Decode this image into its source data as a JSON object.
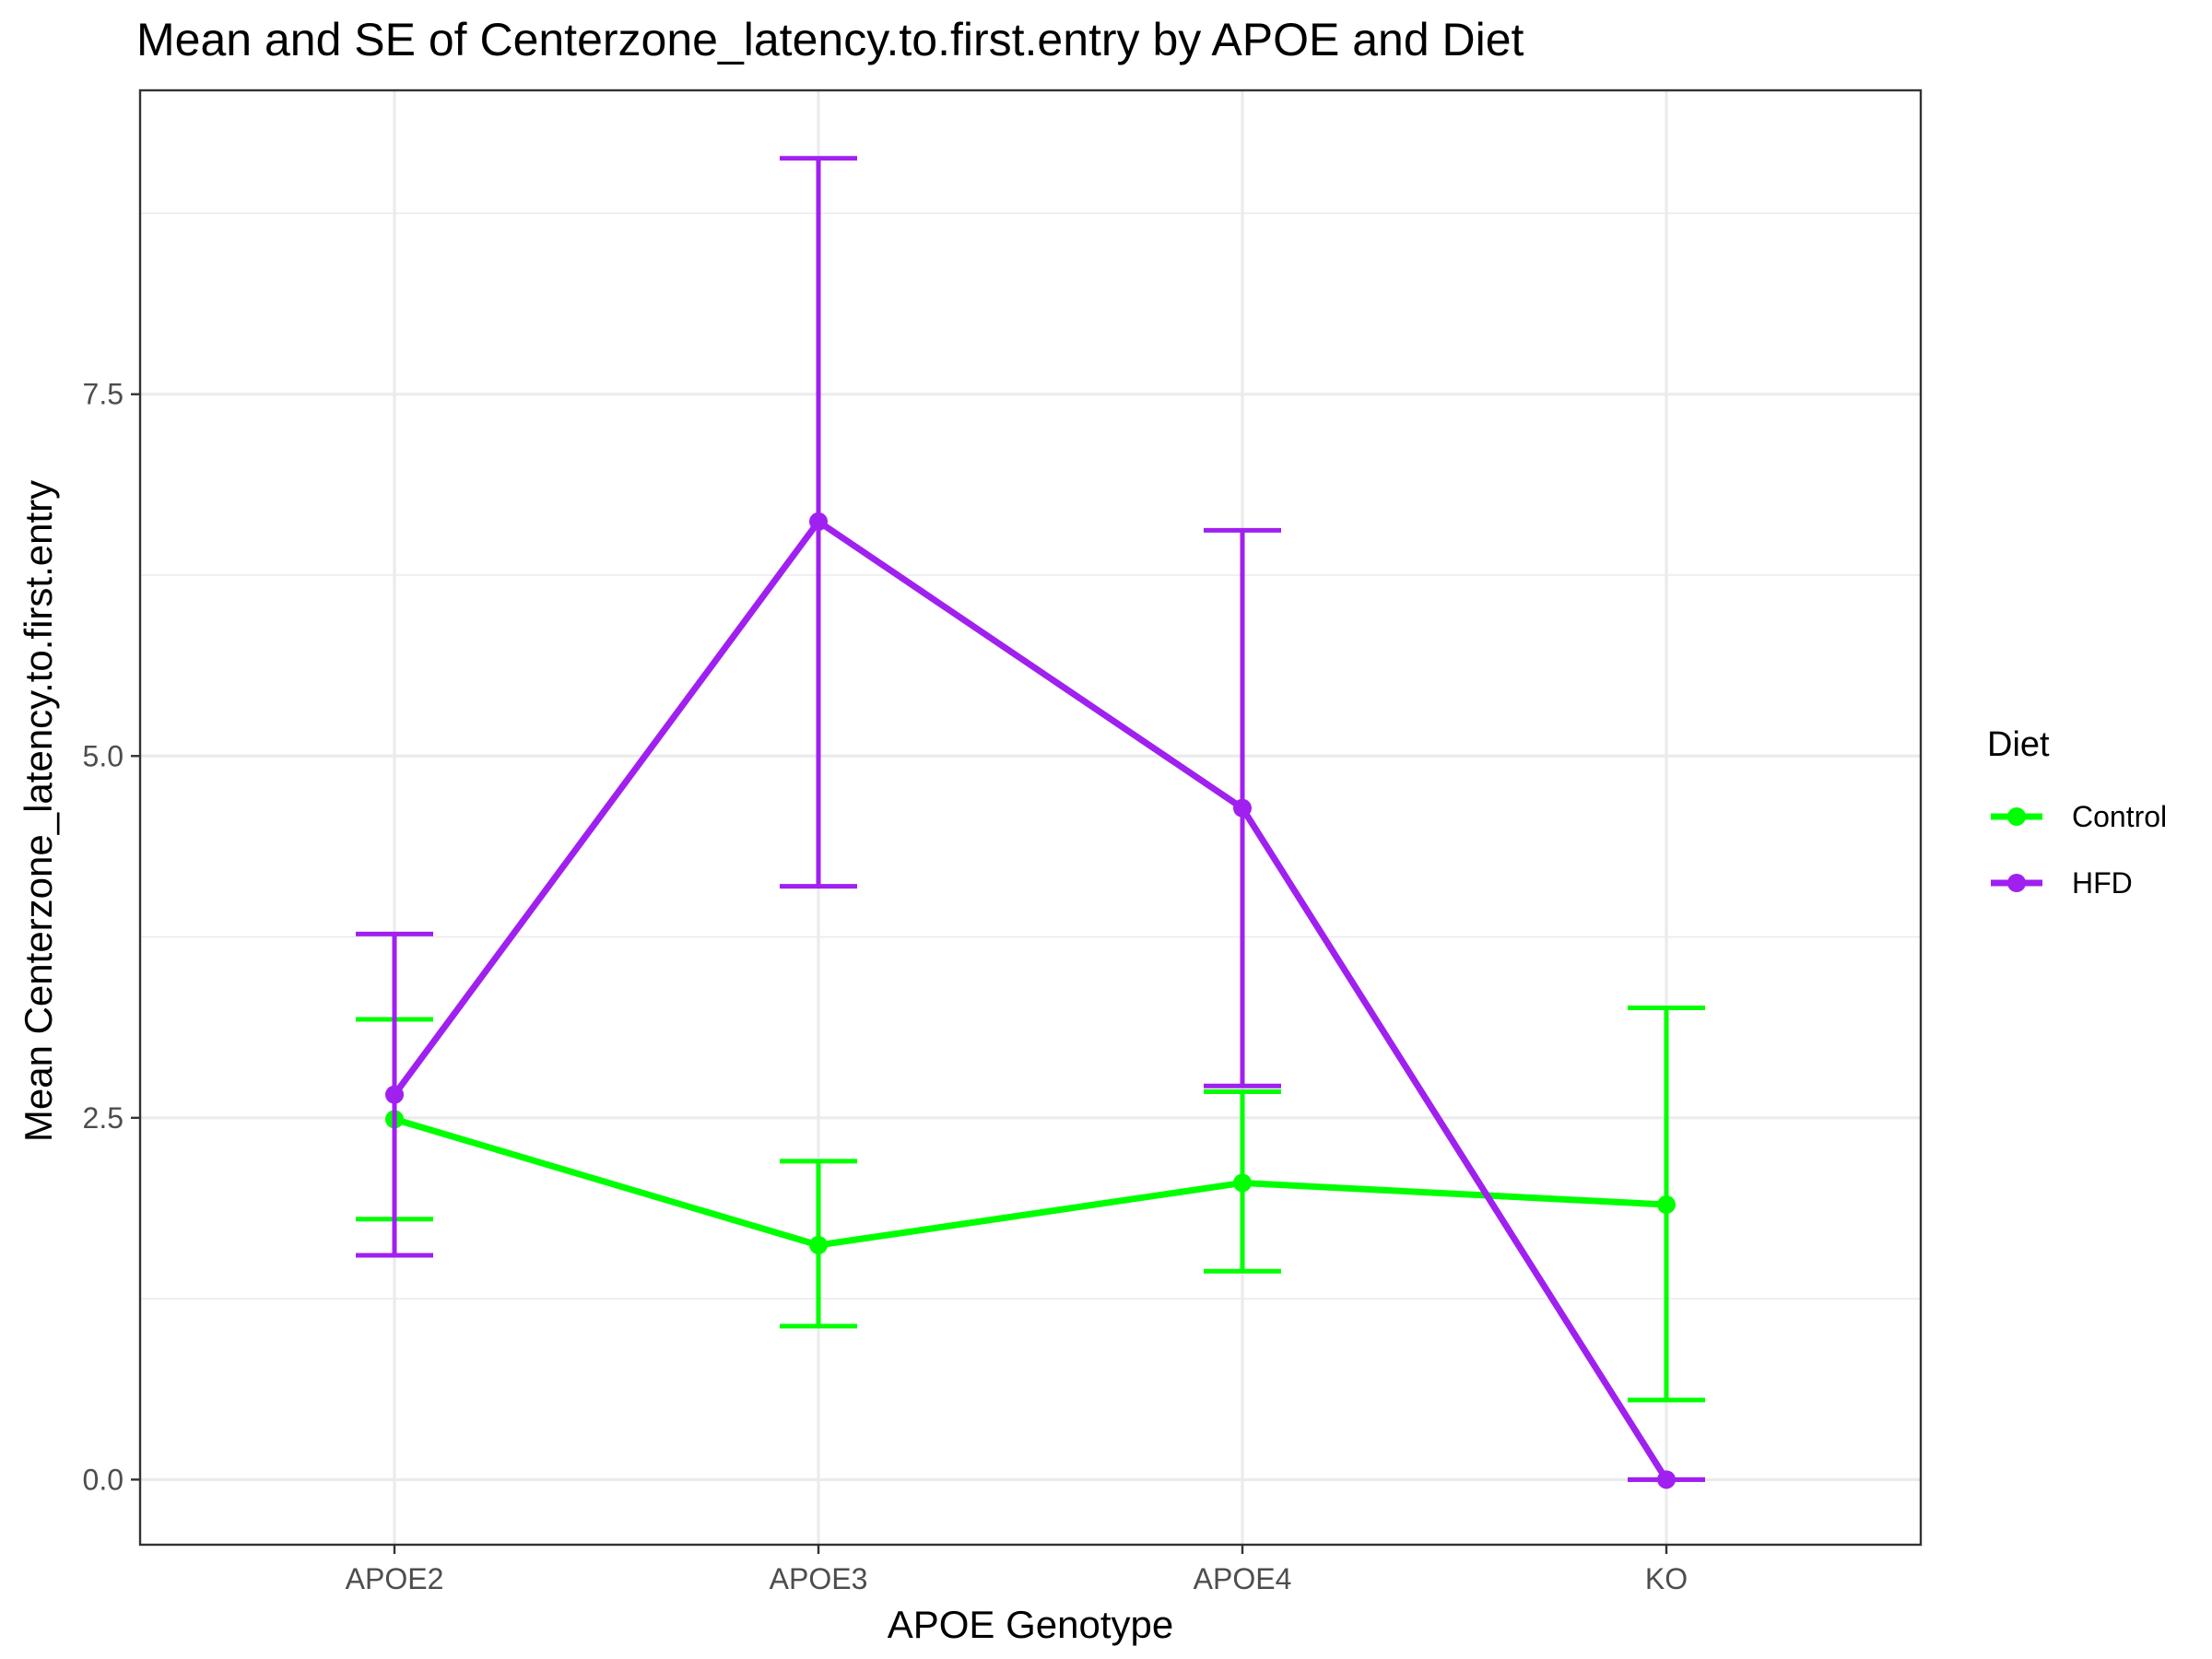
{
  "chart_data": {
    "type": "line",
    "title": "Mean and SE of Centerzone_latency.to.first.entry by APOE and Diet",
    "xlabel": "APOE Genotype",
    "ylabel": "Mean Centerzone_latency.to.first.entry",
    "categories": [
      "APOE2",
      "APOE3",
      "APOE4",
      "KO"
    ],
    "ylim": [
      -0.45,
      9.6
    ],
    "yticks": [
      0.0,
      2.5,
      5.0,
      7.5
    ],
    "ytick_labels": [
      "0.0",
      "2.5",
      "5.0",
      "7.5"
    ],
    "grid": true,
    "legend": {
      "title": "Diet",
      "position": "right"
    },
    "series": [
      {
        "name": "Control",
        "color": "#00ff00",
        "values": [
          2.49,
          1.62,
          2.05,
          1.9
        ],
        "se_low": [
          1.8,
          1.06,
          1.44,
          0.55
        ],
        "se_high": [
          3.18,
          2.2,
          2.68,
          3.26
        ]
      },
      {
        "name": "HFD",
        "color": "#a020f0",
        "values": [
          2.66,
          6.62,
          4.64,
          0.0
        ],
        "se_low": [
          1.55,
          4.1,
          2.72,
          0.0
        ],
        "se_high": [
          3.77,
          9.13,
          6.56,
          0.0
        ]
      }
    ]
  }
}
